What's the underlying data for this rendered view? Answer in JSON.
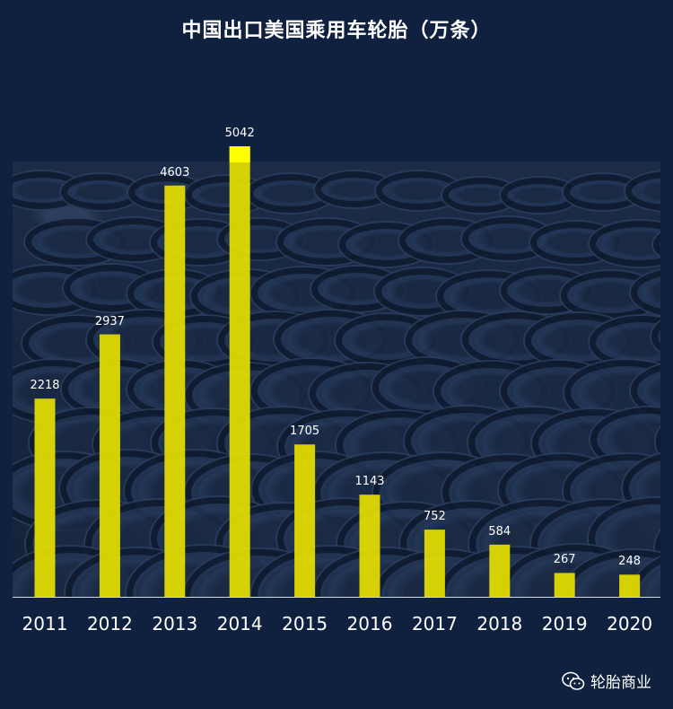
{
  "chart_data": {
    "type": "bar",
    "title": "中国出口美国乘用车轮胎（万条）",
    "categories": [
      "2011",
      "2012",
      "2013",
      "2014",
      "2015",
      "2016",
      "2017",
      "2018",
      "2019",
      "2020"
    ],
    "values": [
      2218,
      2937,
      4603,
      5042,
      1705,
      1143,
      752,
      584,
      267,
      248
    ],
    "value_labels": [
      "2218",
      "2937",
      "4603",
      "5042",
      "1705",
      "1143",
      "752",
      "584",
      "267",
      "248"
    ],
    "ylim": [
      0,
      5042
    ],
    "grid": false,
    "legend": "none",
    "colors": {
      "bar": "#e6e000",
      "bar_top_highlight": "#ffff00",
      "background": "#10213f"
    }
  },
  "watermark": {
    "icon": "wechat-icon",
    "text": "轮胎商业"
  }
}
